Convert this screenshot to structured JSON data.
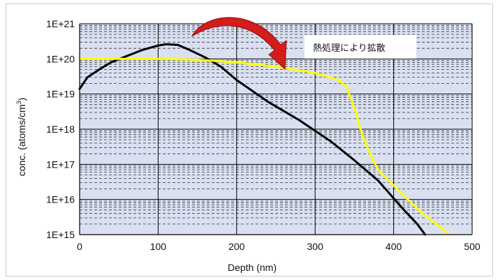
{
  "chart_data": {
    "type": "line",
    "xlabel": "Depth (nm)",
    "ylabel_main": "conc. (atoms/cm",
    "ylabel_sup": "3",
    "ylabel_tail": ")",
    "xlim": [
      0,
      500
    ],
    "ylim_exp": [
      15,
      21
    ],
    "y_scale": "log",
    "grid": "on",
    "x_ticks": [
      "0",
      "100",
      "200",
      "300",
      "400",
      "500"
    ],
    "x_tick_values": [
      0,
      100,
      200,
      300,
      400,
      500
    ],
    "y_ticks": [
      "1E+15",
      "1E+16",
      "1E+17",
      "1E+18",
      "1E+19",
      "1E+20",
      "1E+21"
    ],
    "y_tick_exps": [
      15,
      16,
      17,
      18,
      19,
      20,
      21
    ],
    "annotation": "熱処理により拡散",
    "colors": {
      "plot_bg": "#d9e0f1",
      "grid_major": "#000000",
      "grid_minor": "#333333",
      "black_series": "#000000",
      "yellow_series": "#ffff00",
      "arrow": "#d41c1c"
    },
    "series": [
      {
        "color": "#000000",
        "points": [
          [
            0,
            1.4e+19
          ],
          [
            10,
            3e+19
          ],
          [
            25,
            5e+19
          ],
          [
            40,
            8e+19
          ],
          [
            60,
            1.2e+20
          ],
          [
            80,
            1.8e+20
          ],
          [
            100,
            2.4e+20
          ],
          [
            110,
            2.6e+20
          ],
          [
            125,
            2.5e+20
          ],
          [
            140,
            1.8e+20
          ],
          [
            160,
            1.1e+20
          ],
          [
            180,
            6e+19
          ],
          [
            200,
            2.5e+19
          ],
          [
            240,
            6e+18
          ],
          [
            280,
            1.8e+18
          ],
          [
            320,
            4.5e+17
          ],
          [
            350,
            1.3e+17
          ],
          [
            380,
            3.5e+16
          ],
          [
            410,
            6000000000000000.0
          ],
          [
            430,
            2000000000000000.0
          ],
          [
            440,
            1000000000000000.0
          ]
        ]
      },
      {
        "color": "#ffff00",
        "points": [
          [
            0,
            1e+20
          ],
          [
            50,
            1e+20
          ],
          [
            100,
            1e+20
          ],
          [
            150,
            9.5e+19
          ],
          [
            200,
            8e+19
          ],
          [
            250,
            6e+19
          ],
          [
            300,
            4e+19
          ],
          [
            330,
            2.5e+19
          ],
          [
            340,
            1.6e+19
          ],
          [
            350,
            4e+18
          ],
          [
            360,
            7e+17
          ],
          [
            370,
            2e+17
          ],
          [
            380,
            7e+16
          ],
          [
            400,
            2.5e+16
          ],
          [
            420,
            9000000000000000.0
          ],
          [
            440,
            3500000000000000.0
          ],
          [
            460,
            1600000000000000.0
          ],
          [
            470,
            1000000000000000.0
          ]
        ]
      }
    ]
  }
}
